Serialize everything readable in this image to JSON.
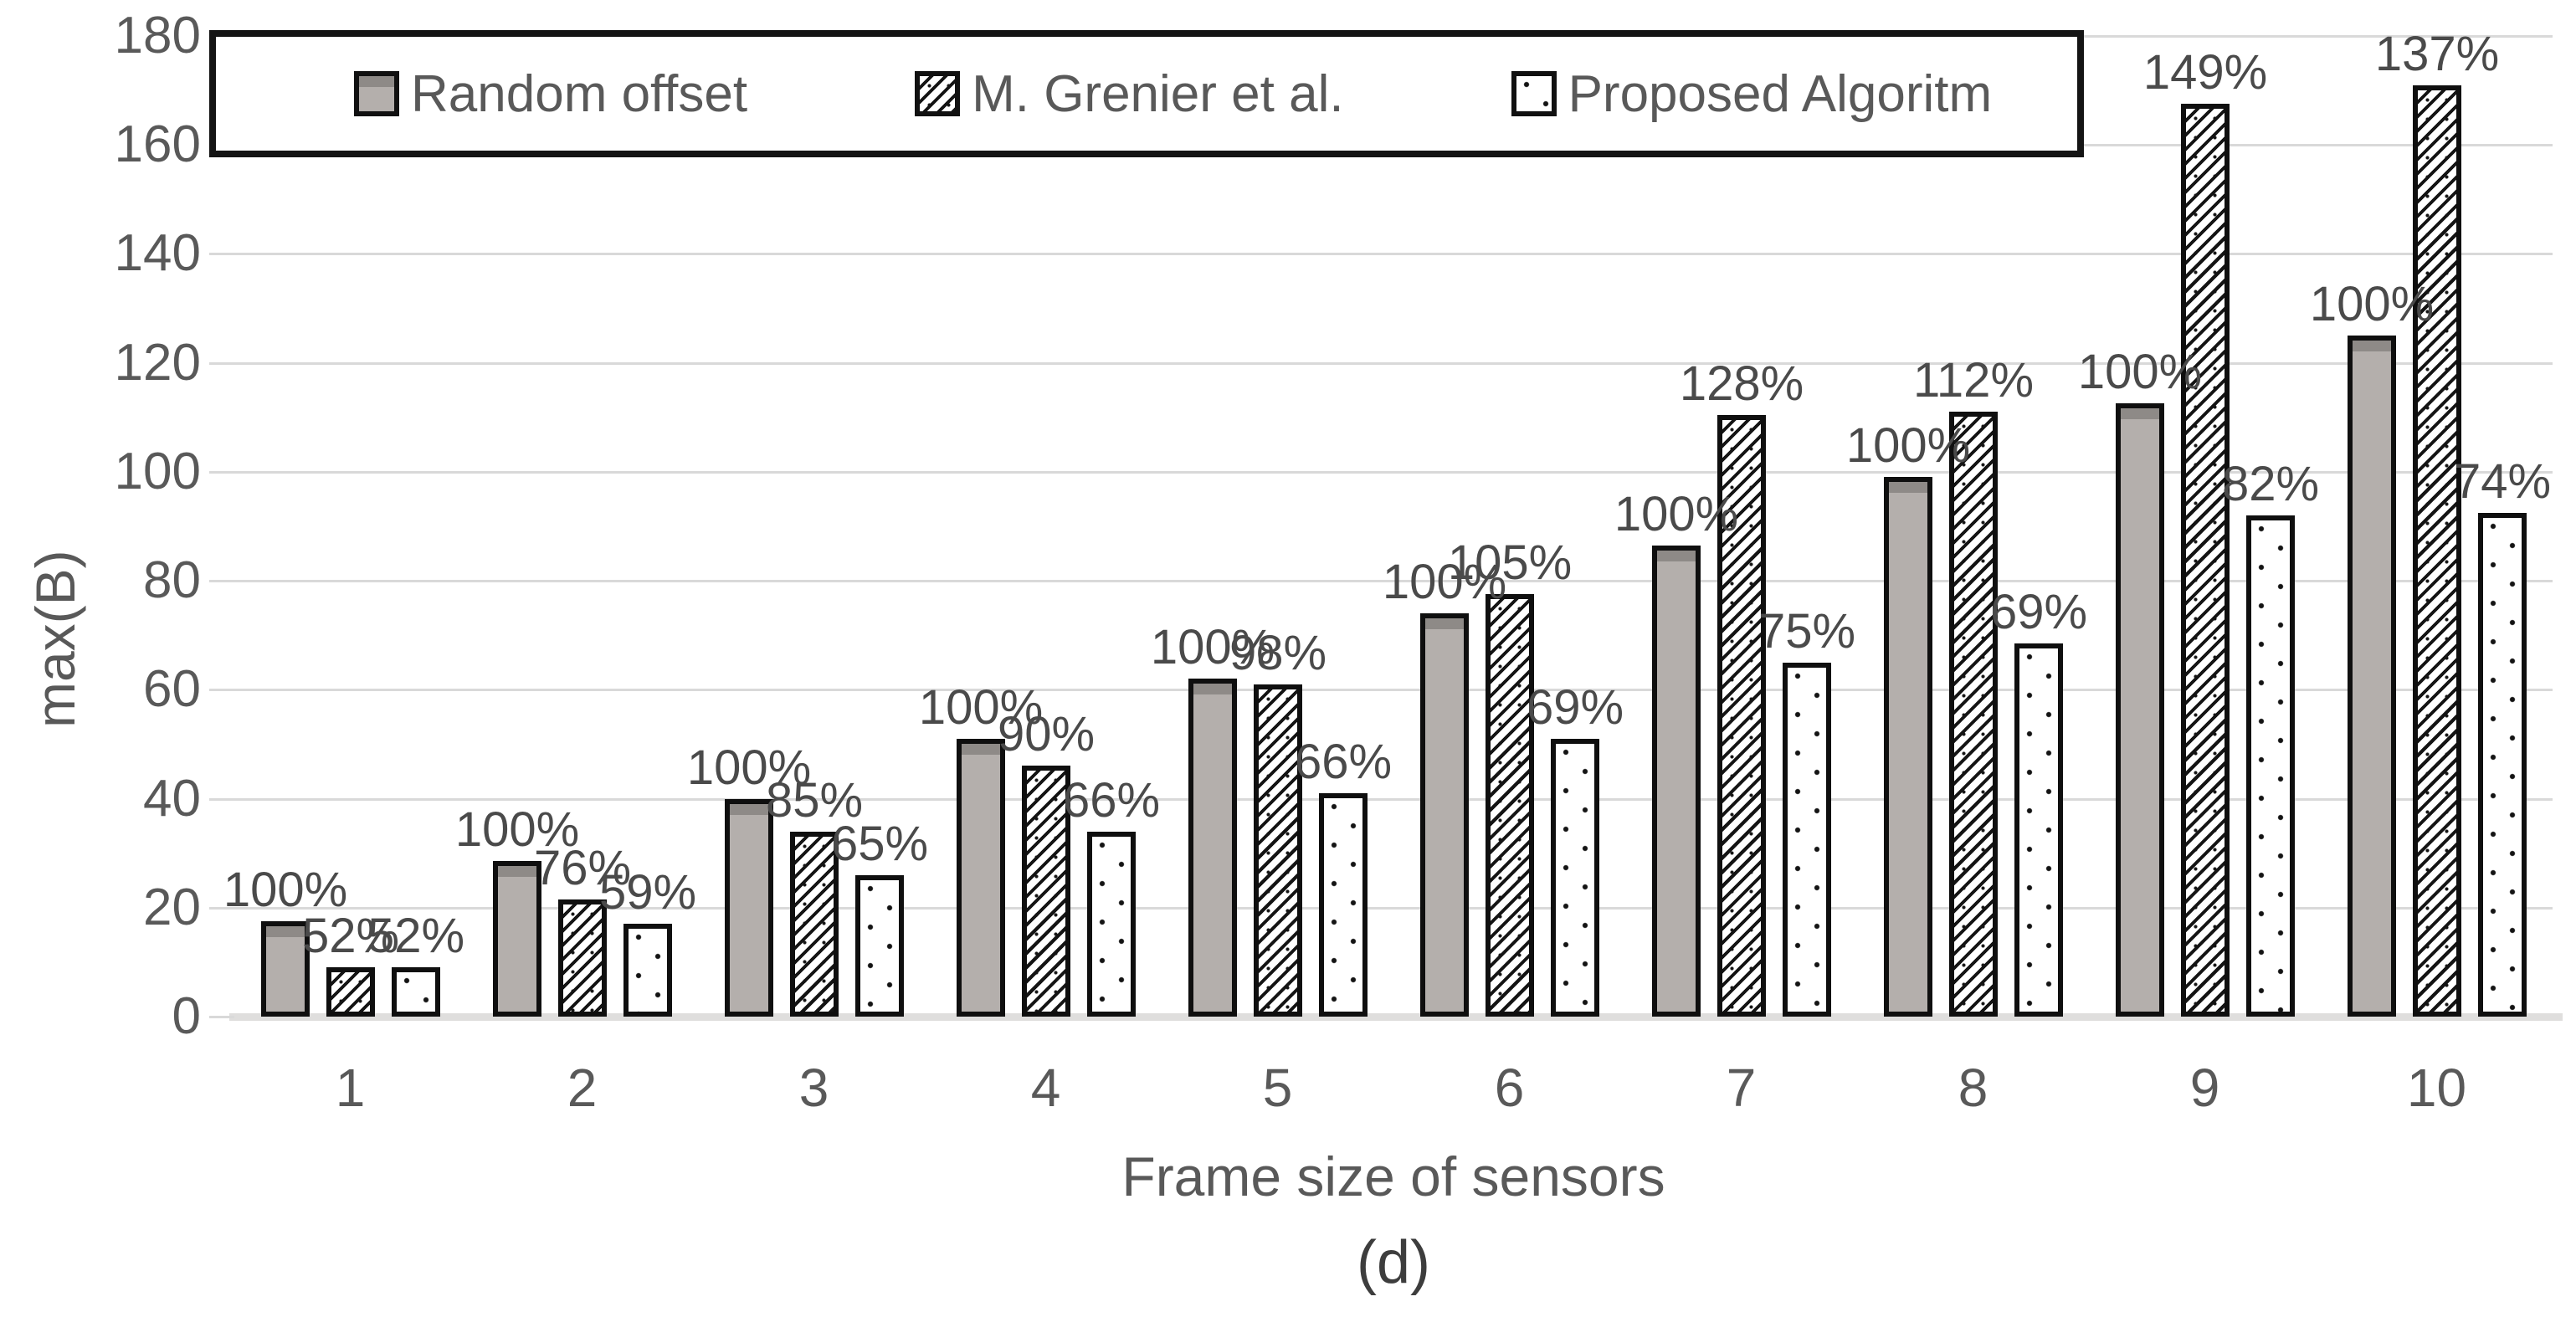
{
  "figure": {
    "caption": "(d)"
  },
  "y_axis": {
    "title": "max(B)"
  },
  "x_axis": {
    "title": "Frame size of sensors"
  },
  "legend": {
    "items": [
      {
        "label": "Random offset",
        "swatch": "solid-gray"
      },
      {
        "label": "M. Grenier et al.",
        "swatch": "diagonal-hatch"
      },
      {
        "label": "Proposed Algoritm",
        "swatch": "dotted-white"
      }
    ]
  },
  "colors": {
    "bar_gray": "#b4afac",
    "bar_gray_cap": "#8e8a87",
    "bar_border": "#0f0f0f",
    "gridline": "#d9d9d9",
    "axis_band": "#dfdedd",
    "tick_text": "#595959",
    "bar_label_text": "#4a4a4a"
  },
  "chart_data": {
    "type": "bar",
    "title": "",
    "xlabel": "Frame size of sensors",
    "ylabel": "max(B)",
    "ylim": [
      0,
      180
    ],
    "y_ticks": [
      0,
      20,
      40,
      60,
      80,
      100,
      120,
      140,
      160,
      180
    ],
    "grid": true,
    "legend_position": "top",
    "categories": [
      "1",
      "2",
      "3",
      "4",
      "5",
      "6",
      "7",
      "8",
      "9",
      "10"
    ],
    "series": [
      {
        "name": "Random offset",
        "pattern": "solid-gray",
        "values": [
          17.5,
          28.5,
          40,
          51,
          62,
          74,
          86.5,
          99,
          112.5,
          125
        ],
        "labels": [
          "100%",
          "100%",
          "100%",
          "100%",
          "100%",
          "100%",
          "100%",
          "100%",
          "100%",
          "100%"
        ]
      },
      {
        "name": "M. Grenier et al.",
        "pattern": "diagonal-hatch",
        "values": [
          9,
          21.5,
          34,
          46,
          61,
          77.5,
          110.5,
          111,
          167.5,
          171
        ],
        "labels": [
          "52%",
          "76%",
          "85%",
          "90%",
          "98%",
          "105%",
          "128%",
          "112%",
          "149%",
          "137%"
        ]
      },
      {
        "name": "Proposed Algoritm",
        "pattern": "dotted-white",
        "values": [
          9,
          17,
          26,
          34,
          41,
          51,
          65,
          68.5,
          92,
          92.5
        ],
        "labels": [
          "52%",
          "59%",
          "65%",
          "66%",
          "66%",
          "69%",
          "75%",
          "69%",
          "82%",
          "74%"
        ]
      }
    ]
  }
}
